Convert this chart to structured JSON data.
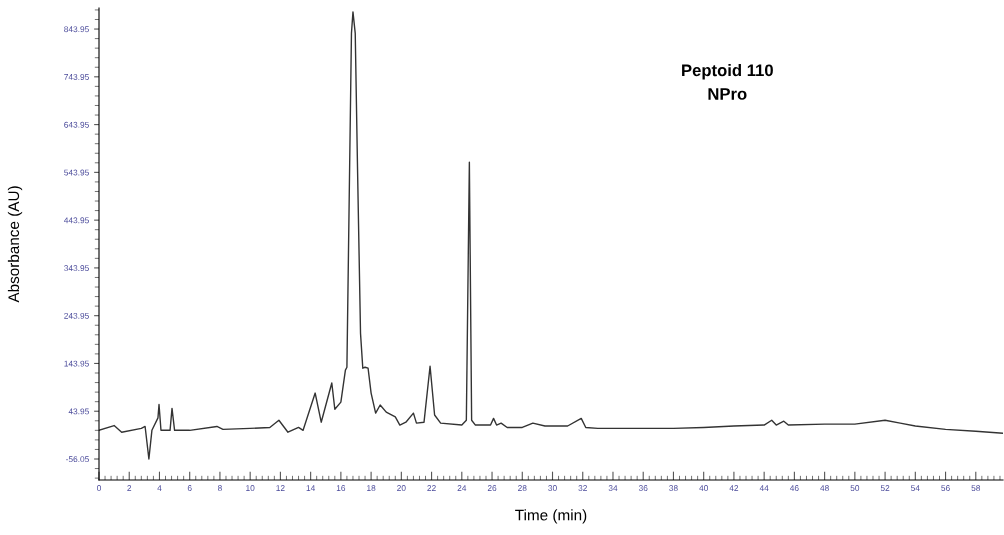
{
  "chart_data": {
    "type": "line",
    "xlabel": "Time (min)",
    "ylabel": "Absorbance (AU)",
    "annotations": [
      "Peptoid 110",
      "NPro"
    ],
    "x": [
      0,
      1,
      1.5,
      2.8,
      3.05,
      3.3,
      3.5,
      3.9,
      3.97,
      4.1,
      4.7,
      4.83,
      5.0,
      6,
      7.8,
      8.2,
      10,
      11.3,
      11.9,
      12.5,
      13.2,
      13.5,
      14.3,
      14.7,
      15.4,
      15.6,
      16.0,
      16.3,
      16.4,
      16.55,
      16.7,
      16.8,
      16.95,
      17.1,
      17.3,
      17.45,
      17.6,
      17.8,
      18.0,
      18.3,
      18.6,
      19.0,
      19.6,
      19.9,
      20.3,
      20.8,
      21.0,
      21.5,
      21.9,
      22.2,
      22.6,
      24.0,
      24.3,
      24.5,
      24.65,
      24.9,
      25.9,
      26.1,
      26.3,
      26.6,
      27,
      28,
      28.7,
      29.5,
      31,
      31.9,
      32.2,
      33,
      38,
      40,
      42,
      44,
      44.5,
      44.8,
      45.3,
      45.6,
      48,
      50,
      52,
      53,
      54,
      56,
      58,
      59.8
    ],
    "series": [
      {
        "color": "#333333",
        "values": [
          4,
          14,
          0,
          8,
          12,
          -56,
          4,
          30,
          58,
          4,
          4,
          50,
          4,
          4,
          12,
          6,
          8,
          10,
          25,
          0,
          10,
          4,
          82,
          21,
          103,
          48,
          63,
          130,
          136,
          486,
          835,
          880,
          835,
          555,
          207,
          134,
          136,
          134,
          82,
          40,
          57,
          42,
          32,
          15,
          21,
          40,
          19,
          21,
          138,
          36,
          19,
          15,
          25,
          565,
          25,
          15,
          15,
          29,
          15,
          19,
          10,
          10,
          19,
          13,
          13,
          29,
          10,
          8,
          8,
          10,
          13,
          15,
          25,
          15,
          23,
          15,
          17,
          17,
          25,
          19,
          13,
          6,
          2,
          -2
        ]
      }
    ],
    "xlim": [
      0,
      59.8
    ],
    "xticks": [
      0,
      2,
      4,
      6,
      8,
      10,
      12,
      14,
      16,
      18,
      20,
      22,
      24,
      26,
      28,
      30,
      32,
      34,
      36,
      38,
      40,
      42,
      44,
      46,
      48,
      50,
      52,
      54,
      56,
      58
    ],
    "ylim": [
      -100,
      888
    ],
    "yticks": [
      -56.05,
      43.95,
      143.95,
      243.95,
      343.95,
      443.95,
      543.95,
      643.95,
      743.95,
      843.95
    ],
    "grid": false,
    "legend": false,
    "marker": "none",
    "line_style": "solid"
  }
}
